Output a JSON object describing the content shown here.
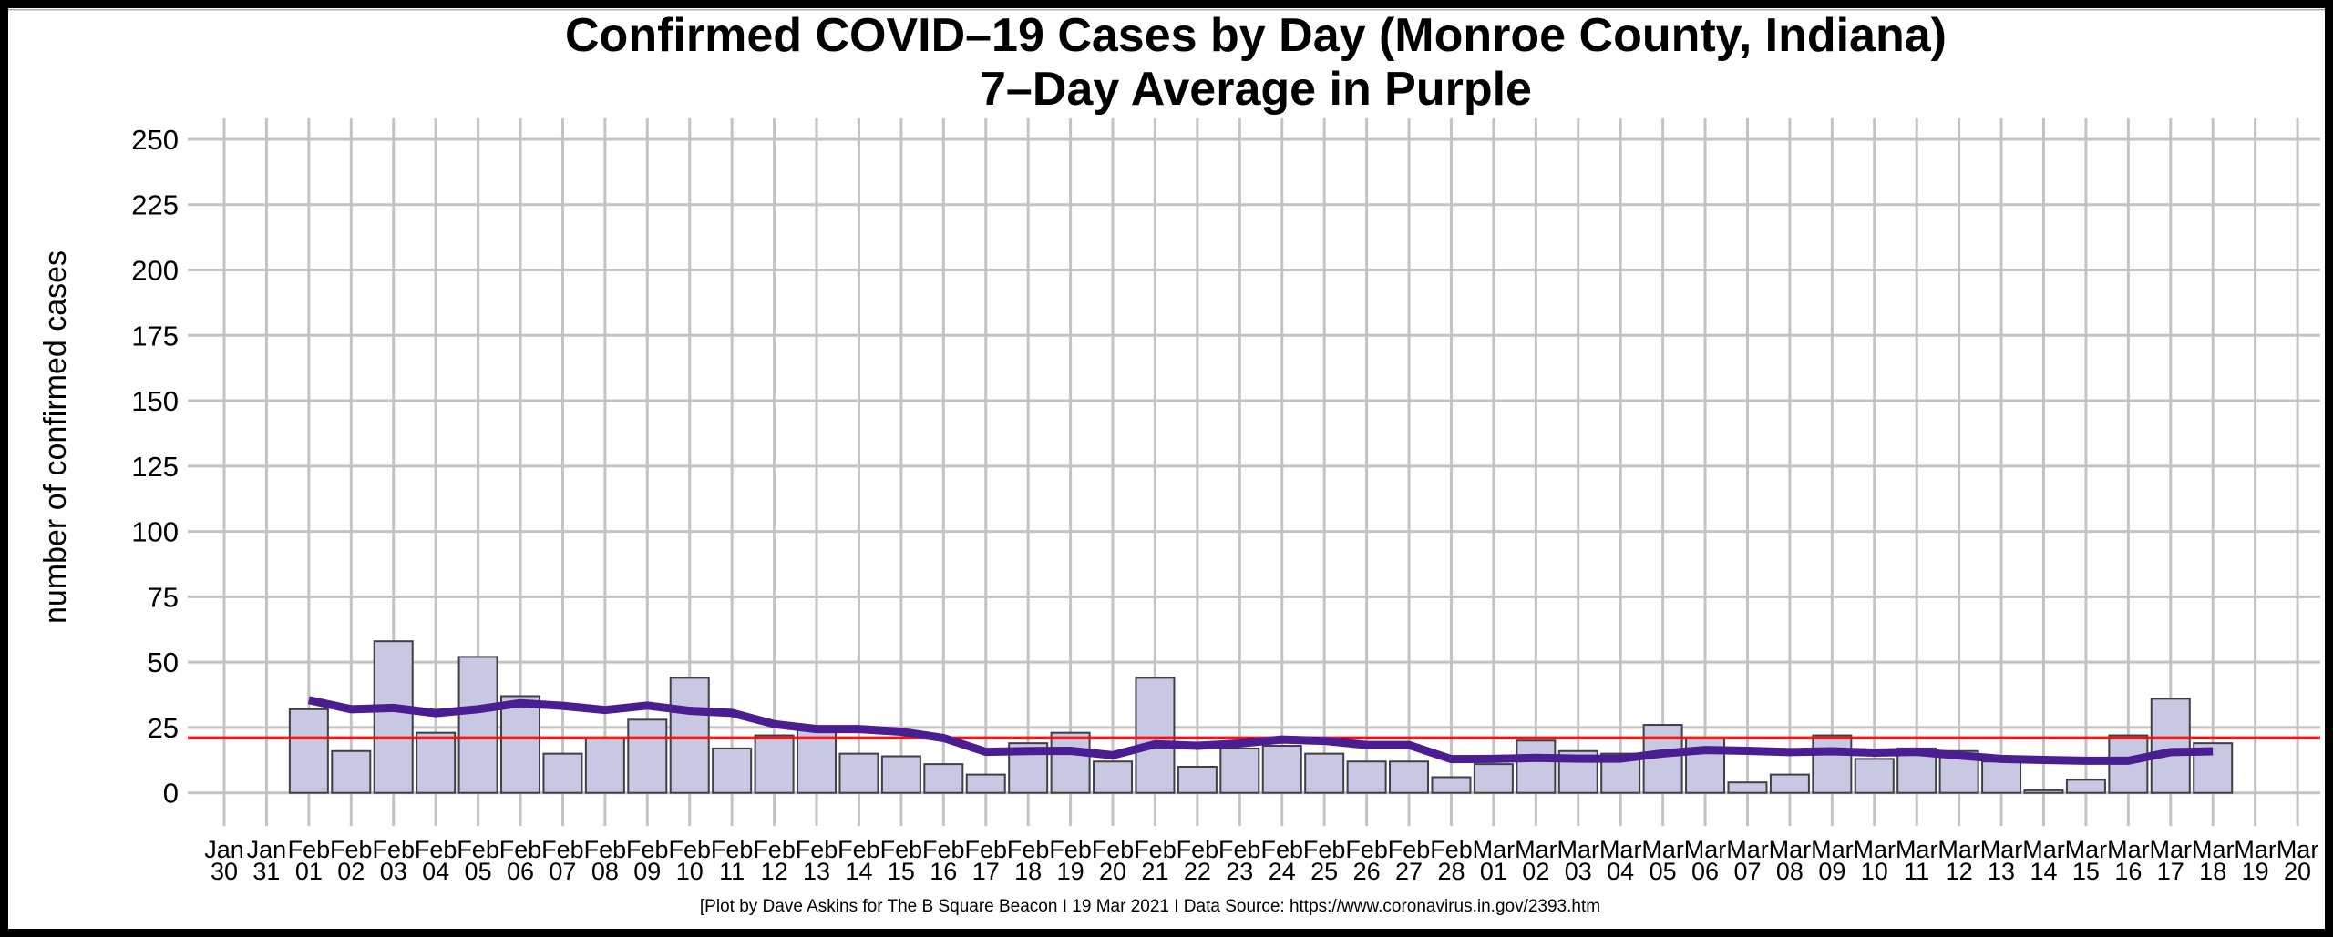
{
  "title": {
    "line1": "Confirmed COVID–19 Cases by Day (Monroe County, Indiana)",
    "line2": "7–Day Average in Purple"
  },
  "y_axis": {
    "label": "number of confirmed cases",
    "ticks": [
      0,
      25,
      50,
      75,
      100,
      125,
      150,
      175,
      200,
      225,
      250
    ]
  },
  "footer": "[Plot by Dave Askins for The B Square Beacon I 19 Mar 2021 I Data Source: https://www.coronavirus.in.gov/2393.htm",
  "colors": {
    "bar_fill": "#c9c8e2",
    "bar_stroke": "#3f3f48",
    "grid": "#c3c3c3",
    "avg_line": "#4a1d92",
    "threshold": "#ed1515",
    "frame": "#000000",
    "hairline": "#adadad"
  },
  "chart_data": {
    "type": "bar",
    "title": "Confirmed COVID–19 Cases by Day (Monroe County, Indiana)",
    "subtitle": "7–Day Average in Purple",
    "xlabel": "",
    "ylabel": "number of confirmed cases",
    "ylim": [
      0,
      250
    ],
    "grid": true,
    "legend_position": "none",
    "categories": [
      {
        "month": "Jan",
        "day": "30"
      },
      {
        "month": "Jan",
        "day": "31"
      },
      {
        "month": "Feb",
        "day": "01"
      },
      {
        "month": "Feb",
        "day": "02"
      },
      {
        "month": "Feb",
        "day": "03"
      },
      {
        "month": "Feb",
        "day": "04"
      },
      {
        "month": "Feb",
        "day": "05"
      },
      {
        "month": "Feb",
        "day": "06"
      },
      {
        "month": "Feb",
        "day": "07"
      },
      {
        "month": "Feb",
        "day": "08"
      },
      {
        "month": "Feb",
        "day": "09"
      },
      {
        "month": "Feb",
        "day": "10"
      },
      {
        "month": "Feb",
        "day": "11"
      },
      {
        "month": "Feb",
        "day": "12"
      },
      {
        "month": "Feb",
        "day": "13"
      },
      {
        "month": "Feb",
        "day": "14"
      },
      {
        "month": "Feb",
        "day": "15"
      },
      {
        "month": "Feb",
        "day": "16"
      },
      {
        "month": "Feb",
        "day": "17"
      },
      {
        "month": "Feb",
        "day": "18"
      },
      {
        "month": "Feb",
        "day": "19"
      },
      {
        "month": "Feb",
        "day": "20"
      },
      {
        "month": "Feb",
        "day": "21"
      },
      {
        "month": "Feb",
        "day": "22"
      },
      {
        "month": "Feb",
        "day": "23"
      },
      {
        "month": "Feb",
        "day": "24"
      },
      {
        "month": "Feb",
        "day": "25"
      },
      {
        "month": "Feb",
        "day": "26"
      },
      {
        "month": "Feb",
        "day": "27"
      },
      {
        "month": "Feb",
        "day": "28"
      },
      {
        "month": "Mar",
        "day": "01"
      },
      {
        "month": "Mar",
        "day": "02"
      },
      {
        "month": "Mar",
        "day": "03"
      },
      {
        "month": "Mar",
        "day": "04"
      },
      {
        "month": "Mar",
        "day": "05"
      },
      {
        "month": "Mar",
        "day": "06"
      },
      {
        "month": "Mar",
        "day": "07"
      },
      {
        "month": "Mar",
        "day": "08"
      },
      {
        "month": "Mar",
        "day": "09"
      },
      {
        "month": "Mar",
        "day": "10"
      },
      {
        "month": "Mar",
        "day": "11"
      },
      {
        "month": "Mar",
        "day": "12"
      },
      {
        "month": "Mar",
        "day": "13"
      },
      {
        "month": "Mar",
        "day": "14"
      },
      {
        "month": "Mar",
        "day": "15"
      },
      {
        "month": "Mar",
        "day": "16"
      },
      {
        "month": "Mar",
        "day": "17"
      },
      {
        "month": "Mar",
        "day": "18"
      },
      {
        "month": "Mar",
        "day": "19"
      },
      {
        "month": "Mar",
        "day": "20"
      }
    ],
    "series": [
      {
        "name": "daily confirmed cases",
        "type": "bar",
        "values": [
          null,
          null,
          32,
          16,
          58,
          23,
          52,
          37,
          15,
          21,
          28,
          44,
          17,
          22,
          24,
          15,
          14,
          11,
          7,
          19,
          23,
          12,
          44,
          10,
          17,
          18,
          15,
          12,
          12,
          6,
          11,
          20,
          16,
          15,
          26,
          21,
          4,
          7,
          22,
          13,
          17,
          16,
          12,
          1,
          5,
          22,
          36,
          19,
          null,
          null
        ]
      },
      {
        "name": "7-day average",
        "type": "line",
        "values": [
          null,
          null,
          35.5,
          32,
          32.5,
          30.5,
          32,
          34.3,
          33.3,
          31.7,
          33.4,
          31.4,
          30.6,
          26.3,
          24.4,
          24.4,
          23.4,
          21,
          15.7,
          16,
          16.1,
          14.4,
          18.6,
          18,
          18.9,
          20.4,
          19.9,
          18.3,
          18.3,
          12.9,
          13,
          13.4,
          13.1,
          13.1,
          15.1,
          16.4,
          16.1,
          15.6,
          15.9,
          15.4,
          15.7,
          14.3,
          13,
          12.6,
          12.3,
          12.3,
          15.6,
          15.9,
          null,
          null
        ]
      }
    ],
    "threshold_line": {
      "value": 21
    }
  }
}
